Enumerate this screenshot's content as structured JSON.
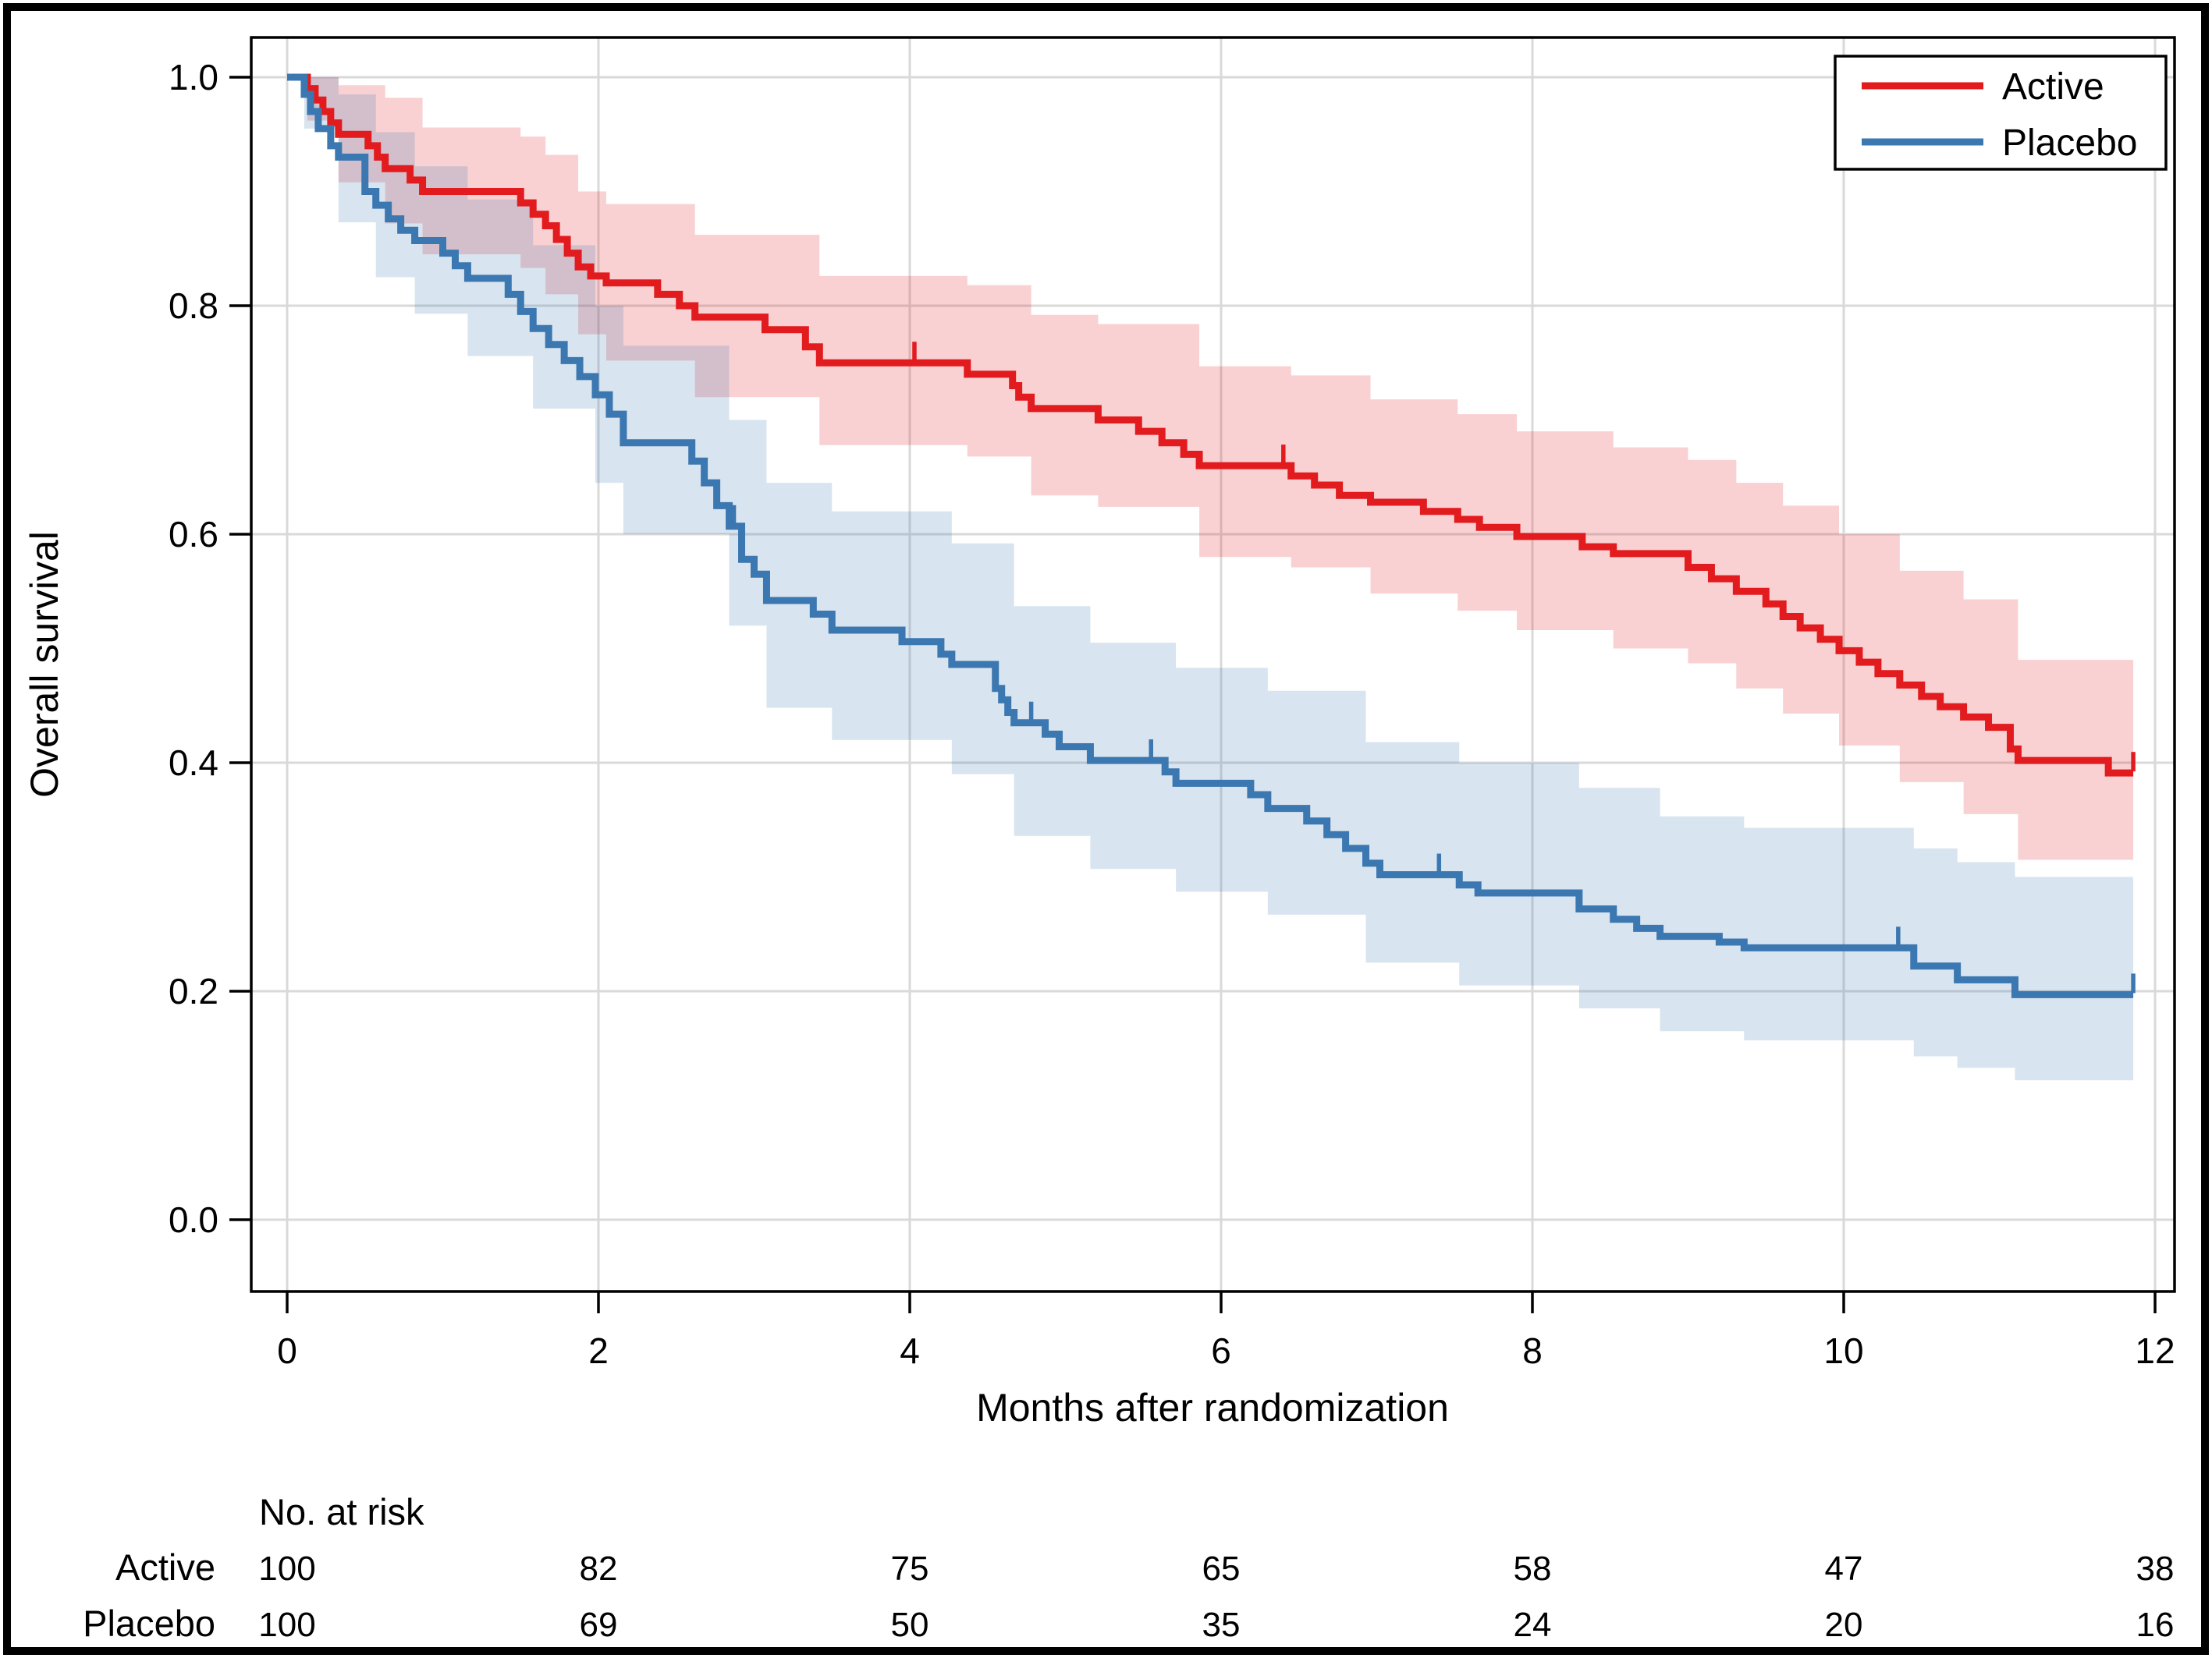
{
  "chart_data": {
    "type": "line",
    "subtype": "kaplan-meier-survival",
    "title": "",
    "xlabel": "Months after randomization",
    "ylabel": "Overall survival",
    "xticks": [
      0,
      2,
      4,
      6,
      8,
      10,
      12
    ],
    "ytick_labels": [
      "0.0",
      "0.2",
      "0.4",
      "0.6",
      "0.8",
      "1.0"
    ],
    "yticks": [
      0.0,
      0.2,
      0.4,
      0.6,
      0.8,
      1.0
    ],
    "xlim": [
      -0.23,
      12.12
    ],
    "ylim": [
      -0.037,
      1.035
    ],
    "grid": true,
    "grid_color": "#d9d9d9",
    "legend_position": "top-right",
    "series": [
      {
        "name": "Active",
        "color": "#e21b1e",
        "ci_fill": "rgba(224,26,29,0.20)",
        "steps": [
          [
            0,
            1.0
          ],
          [
            0.13,
            0.99
          ],
          [
            0.18,
            0.98
          ],
          [
            0.23,
            0.97
          ],
          [
            0.28,
            0.96
          ],
          [
            0.33,
            0.95
          ],
          [
            0.52,
            0.94
          ],
          [
            0.58,
            0.93
          ],
          [
            0.63,
            0.92
          ],
          [
            0.79,
            0.91
          ],
          [
            0.87,
            0.9
          ],
          [
            1.5,
            0.89
          ],
          [
            1.58,
            0.88
          ],
          [
            1.66,
            0.87
          ],
          [
            1.73,
            0.858
          ],
          [
            1.8,
            0.846
          ],
          [
            1.87,
            0.834
          ],
          [
            1.95,
            0.826
          ],
          [
            2.05,
            0.82
          ],
          [
            2.38,
            0.81
          ],
          [
            2.52,
            0.8
          ],
          [
            2.62,
            0.79
          ],
          [
            3.07,
            0.779
          ],
          [
            3.33,
            0.764
          ],
          [
            3.42,
            0.75
          ],
          [
            4.37,
            0.74
          ],
          [
            4.66,
            0.73
          ],
          [
            4.7,
            0.72
          ],
          [
            4.78,
            0.71
          ],
          [
            5.21,
            0.7
          ],
          [
            5.47,
            0.69
          ],
          [
            5.62,
            0.68
          ],
          [
            5.76,
            0.67
          ],
          [
            5.86,
            0.66
          ],
          [
            6.45,
            0.651
          ],
          [
            6.6,
            0.643
          ],
          [
            6.76,
            0.634
          ],
          [
            6.96,
            0.628
          ],
          [
            7.3,
            0.62
          ],
          [
            7.52,
            0.613
          ],
          [
            7.66,
            0.606
          ],
          [
            7.9,
            0.598
          ],
          [
            8.32,
            0.589
          ],
          [
            8.52,
            0.583
          ],
          [
            9.0,
            0.571
          ],
          [
            9.15,
            0.561
          ],
          [
            9.31,
            0.55
          ],
          [
            9.5,
            0.539
          ],
          [
            9.61,
            0.528
          ],
          [
            9.72,
            0.518
          ],
          [
            9.85,
            0.508
          ],
          [
            9.97,
            0.498
          ],
          [
            10.1,
            0.488
          ],
          [
            10.22,
            0.478
          ],
          [
            10.36,
            0.468
          ],
          [
            10.5,
            0.458
          ],
          [
            10.62,
            0.449
          ],
          [
            10.77,
            0.44
          ],
          [
            10.93,
            0.431
          ],
          [
            11.07,
            0.412
          ],
          [
            11.12,
            0.402
          ],
          [
            11.7,
            0.391
          ],
          [
            11.86,
            0.391
          ]
        ],
        "censor_marks": [
          [
            4.03,
            0.75
          ],
          [
            6.4,
            0.66
          ],
          [
            11.86,
            0.391
          ]
        ],
        "ci": [
          [
            0,
            1.0,
            1.0
          ],
          [
            0.13,
            1.0,
            0.962
          ],
          [
            0.33,
            0.993,
            0.908
          ],
          [
            0.63,
            0.982,
            0.872
          ],
          [
            0.87,
            0.956,
            0.845
          ],
          [
            1.5,
            0.948,
            0.833
          ],
          [
            1.66,
            0.932,
            0.81
          ],
          [
            1.87,
            0.9,
            0.775
          ],
          [
            2.05,
            0.889,
            0.752
          ],
          [
            2.62,
            0.862,
            0.72
          ],
          [
            3.42,
            0.826,
            0.678
          ],
          [
            4.37,
            0.818,
            0.668
          ],
          [
            4.78,
            0.792,
            0.634
          ],
          [
            5.21,
            0.784,
            0.624
          ],
          [
            5.86,
            0.747,
            0.58
          ],
          [
            6.45,
            0.739,
            0.571
          ],
          [
            6.96,
            0.718,
            0.548
          ],
          [
            7.52,
            0.705,
            0.533
          ],
          [
            7.9,
            0.69,
            0.516
          ],
          [
            8.52,
            0.676,
            0.5
          ],
          [
            9.0,
            0.665,
            0.487
          ],
          [
            9.31,
            0.645,
            0.465
          ],
          [
            9.61,
            0.625,
            0.443
          ],
          [
            9.97,
            0.6,
            0.415
          ],
          [
            10.36,
            0.568,
            0.383
          ],
          [
            10.77,
            0.543,
            0.355
          ],
          [
            11.12,
            0.49,
            0.315
          ],
          [
            11.86,
            0.482,
            0.305
          ]
        ]
      },
      {
        "name": "Placebo",
        "color": "#3b77b0",
        "ci_fill": "rgba(59,119,176,0.20)",
        "steps": [
          [
            0,
            1.0
          ],
          [
            0.11,
            0.985
          ],
          [
            0.15,
            0.97
          ],
          [
            0.2,
            0.955
          ],
          [
            0.28,
            0.94
          ],
          [
            0.33,
            0.93
          ],
          [
            0.5,
            0.9
          ],
          [
            0.57,
            0.888
          ],
          [
            0.65,
            0.876
          ],
          [
            0.73,
            0.866
          ],
          [
            0.82,
            0.857
          ],
          [
            1.0,
            0.846
          ],
          [
            1.08,
            0.835
          ],
          [
            1.16,
            0.824
          ],
          [
            1.42,
            0.81
          ],
          [
            1.5,
            0.795
          ],
          [
            1.58,
            0.78
          ],
          [
            1.68,
            0.766
          ],
          [
            1.78,
            0.752
          ],
          [
            1.88,
            0.738
          ],
          [
            1.98,
            0.722
          ],
          [
            2.07,
            0.705
          ],
          [
            2.16,
            0.68
          ],
          [
            2.6,
            0.664
          ],
          [
            2.68,
            0.645
          ],
          [
            2.76,
            0.625
          ],
          [
            2.84,
            0.607
          ],
          [
            2.92,
            0.578
          ],
          [
            3.0,
            0.565
          ],
          [
            3.08,
            0.542
          ],
          [
            3.38,
            0.53
          ],
          [
            3.5,
            0.516
          ],
          [
            3.95,
            0.506
          ],
          [
            4.2,
            0.495
          ],
          [
            4.27,
            0.486
          ],
          [
            4.55,
            0.465
          ],
          [
            4.59,
            0.455
          ],
          [
            4.63,
            0.444
          ],
          [
            4.67,
            0.435
          ],
          [
            4.87,
            0.425
          ],
          [
            4.96,
            0.414
          ],
          [
            5.16,
            0.402
          ],
          [
            5.64,
            0.392
          ],
          [
            5.71,
            0.382
          ],
          [
            6.19,
            0.372
          ],
          [
            6.3,
            0.36
          ],
          [
            6.55,
            0.349
          ],
          [
            6.68,
            0.337
          ],
          [
            6.8,
            0.325
          ],
          [
            6.93,
            0.312
          ],
          [
            7.02,
            0.302
          ],
          [
            7.53,
            0.293
          ],
          [
            7.65,
            0.286
          ],
          [
            8.3,
            0.272
          ],
          [
            8.52,
            0.263
          ],
          [
            8.67,
            0.255
          ],
          [
            8.82,
            0.248
          ],
          [
            9.2,
            0.243
          ],
          [
            9.36,
            0.238
          ],
          [
            10.45,
            0.222
          ],
          [
            10.73,
            0.21
          ],
          [
            11.1,
            0.197
          ],
          [
            11.86,
            0.197
          ]
        ],
        "censor_marks": [
          [
            2.87,
            0.607
          ],
          [
            4.78,
            0.435
          ],
          [
            5.55,
            0.402
          ],
          [
            7.4,
            0.302
          ],
          [
            10.35,
            0.238
          ],
          [
            11.86,
            0.197
          ]
        ],
        "ci": [
          [
            0,
            1.0,
            1.0
          ],
          [
            0.11,
            1.0,
            0.955
          ],
          [
            0.33,
            0.985,
            0.873
          ],
          [
            0.57,
            0.952,
            0.825
          ],
          [
            0.82,
            0.922,
            0.793
          ],
          [
            1.16,
            0.893,
            0.756
          ],
          [
            1.58,
            0.853,
            0.71
          ],
          [
            1.98,
            0.8,
            0.645
          ],
          [
            2.16,
            0.765,
            0.6
          ],
          [
            2.84,
            0.7,
            0.52
          ],
          [
            3.08,
            0.645,
            0.448
          ],
          [
            3.5,
            0.62,
            0.42
          ],
          [
            4.27,
            0.592,
            0.39
          ],
          [
            4.67,
            0.537,
            0.336
          ],
          [
            5.16,
            0.505,
            0.307
          ],
          [
            5.71,
            0.483,
            0.287
          ],
          [
            6.3,
            0.463,
            0.267
          ],
          [
            6.93,
            0.418,
            0.225
          ],
          [
            7.53,
            0.4,
            0.205
          ],
          [
            8.3,
            0.378,
            0.185
          ],
          [
            8.82,
            0.353,
            0.165
          ],
          [
            9.36,
            0.343,
            0.157
          ],
          [
            10.45,
            0.325,
            0.143
          ],
          [
            10.73,
            0.313,
            0.133
          ],
          [
            11.1,
            0.3,
            0.122
          ],
          [
            11.86,
            0.3,
            0.122
          ]
        ]
      }
    ]
  },
  "risk_table": {
    "header": "No. at risk",
    "time_columns": [
      0,
      2,
      4,
      6,
      8,
      10,
      12
    ],
    "rows": [
      {
        "label": "Active",
        "values": [
          "100",
          "82",
          "75",
          "65",
          "58",
          "47",
          "38"
        ]
      },
      {
        "label": "Placebo",
        "values": [
          "100",
          "69",
          "50",
          "35",
          "24",
          "20",
          "16"
        ]
      }
    ]
  }
}
